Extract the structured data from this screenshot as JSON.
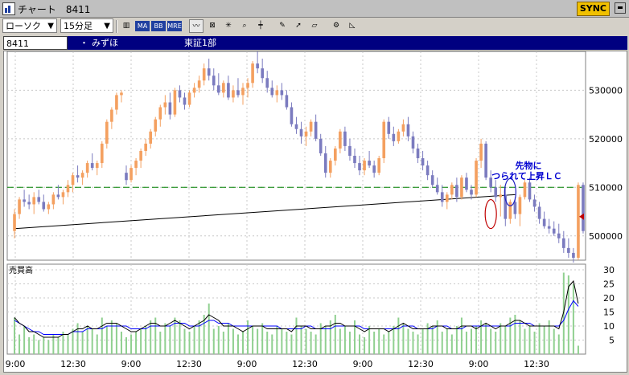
{
  "window": {
    "title": "チャート　8411",
    "sync_label": "SYNC",
    "icon": "chart-app-icon"
  },
  "toolbar": {
    "chart_type": "ローソク",
    "interval": "15分足",
    "buttons": [
      {
        "name": "candle-icon",
        "label": ""
      },
      {
        "name": "ma-button",
        "label": "MA"
      },
      {
        "name": "bb-button",
        "label": "BB"
      },
      {
        "name": "mre-button",
        "label": "MRE"
      },
      {
        "name": "line-tool-icon",
        "label": ""
      },
      {
        "name": "fibonacci-icon",
        "label": ""
      },
      {
        "name": "asterisk-icon",
        "label": ""
      },
      {
        "name": "zoom-icon",
        "label": ""
      },
      {
        "name": "crosshair-icon",
        "label": ""
      },
      {
        "name": "pencil-icon",
        "label": ""
      },
      {
        "name": "cursor-icon",
        "label": ""
      },
      {
        "name": "eraser-icon",
        "label": ""
      },
      {
        "name": "settings-icon",
        "label": ""
      },
      {
        "name": "ruler-icon",
        "label": ""
      }
    ]
  },
  "info": {
    "code": "8411",
    "dot": "・",
    "name": "みずほ",
    "market": "東証1部"
  },
  "chart_data": {
    "type": "candlestick",
    "price_axis": {
      "ticks": [
        500000,
        510000,
        520000,
        530000
      ],
      "range": [
        495000,
        538000
      ]
    },
    "volume_axis": {
      "label": "売買高",
      "ticks": [
        5,
        10,
        15,
        20,
        25,
        30
      ],
      "range": [
        0,
        32
      ]
    },
    "x_tick_labels": [
      "9:00",
      "12:30",
      "9:00",
      "12:30",
      "9:00",
      "12:30",
      "9:00",
      "12:30",
      "9:00",
      "12:30"
    ],
    "annotation": {
      "line1": "先物に",
      "line2": "つられて上昇ＬＣ"
    },
    "reference_level": 510000,
    "trendline": {
      "from": 501500,
      "to": 508500
    },
    "colors": {
      "up": "#f4a060",
      "down": "#7b7bbf",
      "volume": "#90d090",
      "reference": "#008000",
      "ma_short": "#000000",
      "ma_long": "#0000ff",
      "marker": "#c00000"
    },
    "candles": [
      {
        "o": 501000,
        "h": 505500,
        "l": 499500,
        "c": 504500
      },
      {
        "o": 504500,
        "h": 508000,
        "l": 503500,
        "c": 507500
      },
      {
        "o": 507500,
        "h": 509500,
        "l": 506000,
        "c": 507000
      },
      {
        "o": 507000,
        "h": 508500,
        "l": 505500,
        "c": 506500
      },
      {
        "o": 506500,
        "h": 509000,
        "l": 504500,
        "c": 508000
      },
      {
        "o": 508000,
        "h": 509500,
        "l": 506500,
        "c": 507000
      },
      {
        "o": 507000,
        "h": 508500,
        "l": 505000,
        "c": 505500
      },
      {
        "o": 505500,
        "h": 507000,
        "l": 504500,
        "c": 506500
      },
      {
        "o": 506500,
        "h": 509000,
        "l": 505500,
        "c": 508500
      },
      {
        "o": 508500,
        "h": 510500,
        "l": 507500,
        "c": 508000
      },
      {
        "o": 508000,
        "h": 509500,
        "l": 506500,
        "c": 509000
      },
      {
        "o": 509000,
        "h": 511500,
        "l": 508000,
        "c": 510500
      },
      {
        "o": 510500,
        "h": 513000,
        "l": 509000,
        "c": 512500
      },
      {
        "o": 512500,
        "h": 514500,
        "l": 511000,
        "c": 512000
      },
      {
        "o": 512000,
        "h": 513500,
        "l": 510500,
        "c": 513000
      },
      {
        "o": 513000,
        "h": 515500,
        "l": 512000,
        "c": 515000
      },
      {
        "o": 515000,
        "h": 517000,
        "l": 513500,
        "c": 514000
      },
      {
        "o": 514000,
        "h": 515500,
        "l": 512500,
        "c": 515000
      },
      {
        "o": 515000,
        "h": 519500,
        "l": 514000,
        "c": 519000
      },
      {
        "o": 519000,
        "h": 524000,
        "l": 518000,
        "c": 523500
      },
      {
        "o": 523500,
        "h": 526500,
        "l": 522000,
        "c": 526000
      },
      {
        "o": 526000,
        "h": 529500,
        "l": 525000,
        "c": 529000
      },
      {
        "o": 529000,
        "h": 530000,
        "l": 527500,
        "c": 529500
      },
      {
        "o": 513000,
        "h": 514500,
        "l": 510500,
        "c": 511500
      },
      {
        "o": 511500,
        "h": 514500,
        "l": 511000,
        "c": 514000
      },
      {
        "o": 514000,
        "h": 516000,
        "l": 512500,
        "c": 515500
      },
      {
        "o": 515500,
        "h": 518000,
        "l": 514000,
        "c": 517500
      },
      {
        "o": 517500,
        "h": 520000,
        "l": 516500,
        "c": 519000
      },
      {
        "o": 519000,
        "h": 522000,
        "l": 518000,
        "c": 521500
      },
      {
        "o": 521500,
        "h": 524500,
        "l": 520500,
        "c": 524000
      },
      {
        "o": 524000,
        "h": 527000,
        "l": 522500,
        "c": 526500
      },
      {
        "o": 526500,
        "h": 529000,
        "l": 525000,
        "c": 527500
      },
      {
        "o": 527500,
        "h": 529500,
        "l": 524000,
        "c": 525000
      },
      {
        "o": 525000,
        "h": 530500,
        "l": 524500,
        "c": 530000
      },
      {
        "o": 530000,
        "h": 531000,
        "l": 527500,
        "c": 528500
      },
      {
        "o": 528500,
        "h": 529500,
        "l": 526000,
        "c": 527000
      },
      {
        "o": 527000,
        "h": 530000,
        "l": 526500,
        "c": 529500
      },
      {
        "o": 529500,
        "h": 531500,
        "l": 528500,
        "c": 530500
      },
      {
        "o": 530500,
        "h": 533000,
        "l": 529500,
        "c": 532000
      },
      {
        "o": 532000,
        "h": 535500,
        "l": 531000,
        "c": 534500
      },
      {
        "o": 534500,
        "h": 536500,
        "l": 532000,
        "c": 533000
      },
      {
        "o": 533000,
        "h": 534500,
        "l": 530000,
        "c": 531000
      },
      {
        "o": 531000,
        "h": 533500,
        "l": 529000,
        "c": 529500
      },
      {
        "o": 529500,
        "h": 532000,
        "l": 528500,
        "c": 531500
      },
      {
        "o": 531500,
        "h": 533000,
        "l": 528000,
        "c": 528500
      },
      {
        "o": 528500,
        "h": 531000,
        "l": 527500,
        "c": 530000
      },
      {
        "o": 530000,
        "h": 532500,
        "l": 528500,
        "c": 529000
      },
      {
        "o": 529000,
        "h": 531500,
        "l": 527000,
        "c": 530500
      },
      {
        "o": 530500,
        "h": 532500,
        "l": 528500,
        "c": 531500
      },
      {
        "o": 531500,
        "h": 536000,
        "l": 530500,
        "c": 535500
      },
      {
        "o": 535500,
        "h": 538000,
        "l": 533500,
        "c": 534500
      },
      {
        "o": 534500,
        "h": 536500,
        "l": 531500,
        "c": 532500
      },
      {
        "o": 532500,
        "h": 534000,
        "l": 529500,
        "c": 530500
      },
      {
        "o": 530500,
        "h": 532000,
        "l": 528500,
        "c": 529000
      },
      {
        "o": 529000,
        "h": 531000,
        "l": 527500,
        "c": 530000
      },
      {
        "o": 530000,
        "h": 531500,
        "l": 528000,
        "c": 529000
      },
      {
        "o": 529000,
        "h": 530000,
        "l": 526000,
        "c": 526500
      },
      {
        "o": 526500,
        "h": 527500,
        "l": 522500,
        "c": 523000
      },
      {
        "o": 523000,
        "h": 524500,
        "l": 521000,
        "c": 522000
      },
      {
        "o": 522000,
        "h": 523500,
        "l": 519000,
        "c": 520500
      },
      {
        "o": 520500,
        "h": 522500,
        "l": 518500,
        "c": 521500
      },
      {
        "o": 521500,
        "h": 524000,
        "l": 520500,
        "c": 523500
      },
      {
        "o": 523500,
        "h": 525000,
        "l": 519500,
        "c": 520000
      },
      {
        "o": 520000,
        "h": 521000,
        "l": 516500,
        "c": 517000
      },
      {
        "o": 517000,
        "h": 518500,
        "l": 512000,
        "c": 513000
      },
      {
        "o": 513000,
        "h": 516000,
        "l": 512000,
        "c": 515500
      },
      {
        "o": 515500,
        "h": 518500,
        "l": 514500,
        "c": 518000
      },
      {
        "o": 518000,
        "h": 522000,
        "l": 517000,
        "c": 521500
      },
      {
        "o": 521500,
        "h": 522500,
        "l": 517500,
        "c": 518500
      },
      {
        "o": 518500,
        "h": 520000,
        "l": 515500,
        "c": 516500
      },
      {
        "o": 516500,
        "h": 518000,
        "l": 514000,
        "c": 515000
      },
      {
        "o": 515000,
        "h": 516500,
        "l": 512500,
        "c": 513500
      },
      {
        "o": 513500,
        "h": 516000,
        "l": 512500,
        "c": 515500
      },
      {
        "o": 515500,
        "h": 517500,
        "l": 514000,
        "c": 514500
      },
      {
        "o": 514500,
        "h": 515500,
        "l": 512000,
        "c": 513000
      },
      {
        "o": 513000,
        "h": 516500,
        "l": 512500,
        "c": 516000
      },
      {
        "o": 516000,
        "h": 524000,
        "l": 515000,
        "c": 523500
      },
      {
        "o": 523500,
        "h": 524500,
        "l": 520000,
        "c": 521000
      },
      {
        "o": 521000,
        "h": 522500,
        "l": 518500,
        "c": 519500
      },
      {
        "o": 519500,
        "h": 522000,
        "l": 519000,
        "c": 521500
      },
      {
        "o": 521500,
        "h": 524000,
        "l": 520500,
        "c": 523000
      },
      {
        "o": 523000,
        "h": 524500,
        "l": 519500,
        "c": 520500
      },
      {
        "o": 520500,
        "h": 521500,
        "l": 517000,
        "c": 518000
      },
      {
        "o": 518000,
        "h": 519000,
        "l": 515000,
        "c": 516000
      },
      {
        "o": 516000,
        "h": 517500,
        "l": 513500,
        "c": 514500
      },
      {
        "o": 514500,
        "h": 515500,
        "l": 511500,
        "c": 512500
      },
      {
        "o": 512500,
        "h": 513500,
        "l": 510000,
        "c": 510500
      },
      {
        "o": 510500,
        "h": 512000,
        "l": 508500,
        "c": 509000
      },
      {
        "o": 509000,
        "h": 510500,
        "l": 506000,
        "c": 507000
      },
      {
        "o": 507000,
        "h": 509000,
        "l": 505500,
        "c": 508500
      },
      {
        "o": 508500,
        "h": 511000,
        "l": 507500,
        "c": 510500
      },
      {
        "o": 510500,
        "h": 512000,
        "l": 507000,
        "c": 508000
      },
      {
        "o": 508000,
        "h": 512500,
        "l": 507500,
        "c": 512000
      },
      {
        "o": 512000,
        "h": 513000,
        "l": 509000,
        "c": 509500
      },
      {
        "o": 509500,
        "h": 510500,
        "l": 507500,
        "c": 508500
      },
      {
        "o": 508500,
        "h": 516000,
        "l": 508000,
        "c": 515500
      },
      {
        "o": 515500,
        "h": 520000,
        "l": 514000,
        "c": 519000
      },
      {
        "o": 519000,
        "h": 519500,
        "l": 511500,
        "c": 512000
      },
      {
        "o": 512000,
        "h": 513500,
        "l": 509000,
        "c": 510000
      },
      {
        "o": 510000,
        "h": 511500,
        "l": 507000,
        "c": 508000
      },
      {
        "o": 508000,
        "h": 510500,
        "l": 504000,
        "c": 508500
      },
      {
        "o": 508500,
        "h": 510000,
        "l": 502000,
        "c": 503500
      },
      {
        "o": 503500,
        "h": 507500,
        "l": 502500,
        "c": 507000
      },
      {
        "o": 507000,
        "h": 508000,
        "l": 503500,
        "c": 504500
      },
      {
        "o": 504500,
        "h": 508500,
        "l": 502000,
        "c": 508000
      },
      {
        "o": 508000,
        "h": 511500,
        "l": 507500,
        "c": 511000
      },
      {
        "o": 511000,
        "h": 512000,
        "l": 507000,
        "c": 507500
      },
      {
        "o": 507500,
        "h": 508500,
        "l": 505000,
        "c": 506000
      },
      {
        "o": 506000,
        "h": 507000,
        "l": 502500,
        "c": 503500
      },
      {
        "o": 503500,
        "h": 505000,
        "l": 501500,
        "c": 502000
      },
      {
        "o": 502000,
        "h": 503500,
        "l": 500500,
        "c": 501500
      },
      {
        "o": 501500,
        "h": 503000,
        "l": 500000,
        "c": 500500
      },
      {
        "o": 500500,
        "h": 502500,
        "l": 498500,
        "c": 499500
      },
      {
        "o": 499500,
        "h": 501000,
        "l": 496500,
        "c": 497500
      },
      {
        "o": 497500,
        "h": 499500,
        "l": 495500,
        "c": 496500
      },
      {
        "o": 496500,
        "h": 497500,
        "l": 494500,
        "c": 495500
      },
      {
        "o": 495500,
        "h": 511000,
        "l": 495000,
        "c": 510500
      },
      {
        "o": 510500,
        "h": 511000,
        "l": 500500,
        "c": 501000
      }
    ],
    "volume": [
      13,
      7,
      10,
      6,
      7,
      5,
      6,
      5,
      7,
      6,
      8,
      7,
      9,
      11,
      8,
      10,
      9,
      7,
      13,
      10,
      12,
      11,
      8,
      6,
      7,
      8,
      9,
      10,
      12,
      13,
      8,
      11,
      10,
      13,
      12,
      9,
      8,
      10,
      12,
      14,
      18,
      9,
      10,
      8,
      11,
      9,
      7,
      8,
      12,
      10,
      9,
      11,
      8,
      7,
      10,
      9,
      8,
      7,
      13,
      10,
      9,
      8,
      7,
      11,
      10,
      12,
      14,
      9,
      10,
      8,
      12,
      7,
      6,
      10,
      8,
      9,
      7,
      8,
      10,
      13,
      11,
      9,
      8,
      7,
      9,
      11,
      10,
      12,
      8,
      9,
      7,
      10,
      13,
      8,
      9,
      10,
      12,
      11,
      9,
      8,
      11,
      10,
      13,
      14,
      12,
      9,
      10,
      8,
      11,
      10,
      12,
      9,
      7,
      29,
      28,
      25,
      3
    ],
    "ma_short": [
      13,
      11,
      10,
      8,
      8,
      7,
      6,
      6,
      6,
      6,
      7,
      7,
      8,
      9,
      9,
      10,
      9,
      9,
      10,
      11,
      11,
      11,
      10,
      9,
      8,
      8,
      9,
      10,
      11,
      11,
      10,
      10,
      11,
      12,
      11,
      10,
      9,
      10,
      11,
      12,
      14,
      13,
      12,
      10,
      10,
      10,
      9,
      8,
      9,
      10,
      10,
      10,
      9,
      9,
      9,
      9,
      9,
      8,
      10,
      10,
      10,
      9,
      9,
      9,
      10,
      10,
      11,
      11,
      10,
      10,
      10,
      9,
      8,
      9,
      9,
      9,
      9,
      8,
      9,
      10,
      11,
      10,
      9,
      9,
      9,
      9,
      10,
      10,
      10,
      9,
      9,
      9,
      10,
      10,
      10,
      9,
      10,
      11,
      10,
      9,
      10,
      10,
      11,
      12,
      12,
      11,
      10,
      10,
      10,
      10,
      10,
      10,
      9,
      15,
      24,
      26,
      18
    ],
    "ma_long": [
      12,
      11,
      10,
      9,
      8,
      8,
      7,
      7,
      7,
      7,
      7,
      7,
      8,
      8,
      8,
      9,
      9,
      9,
      9,
      10,
      10,
      10,
      10,
      10,
      9,
      9,
      9,
      9,
      10,
      10,
      10,
      10,
      10,
      11,
      11,
      11,
      10,
      10,
      10,
      11,
      12,
      12,
      11,
      11,
      11,
      10,
      10,
      10,
      10,
      10,
      10,
      10,
      10,
      10,
      10,
      9,
      9,
      9,
      9,
      9,
      10,
      10,
      9,
      9,
      9,
      9,
      10,
      10,
      10,
      10,
      10,
      10,
      9,
      9,
      9,
      9,
      9,
      9,
      9,
      9,
      10,
      10,
      10,
      9,
      9,
      9,
      9,
      10,
      10,
      10,
      9,
      9,
      9,
      10,
      10,
      10,
      10,
      10,
      10,
      10,
      10,
      10,
      10,
      11,
      11,
      11,
      11,
      10,
      10,
      10,
      10,
      10,
      10,
      12,
      16,
      19,
      17
    ]
  }
}
